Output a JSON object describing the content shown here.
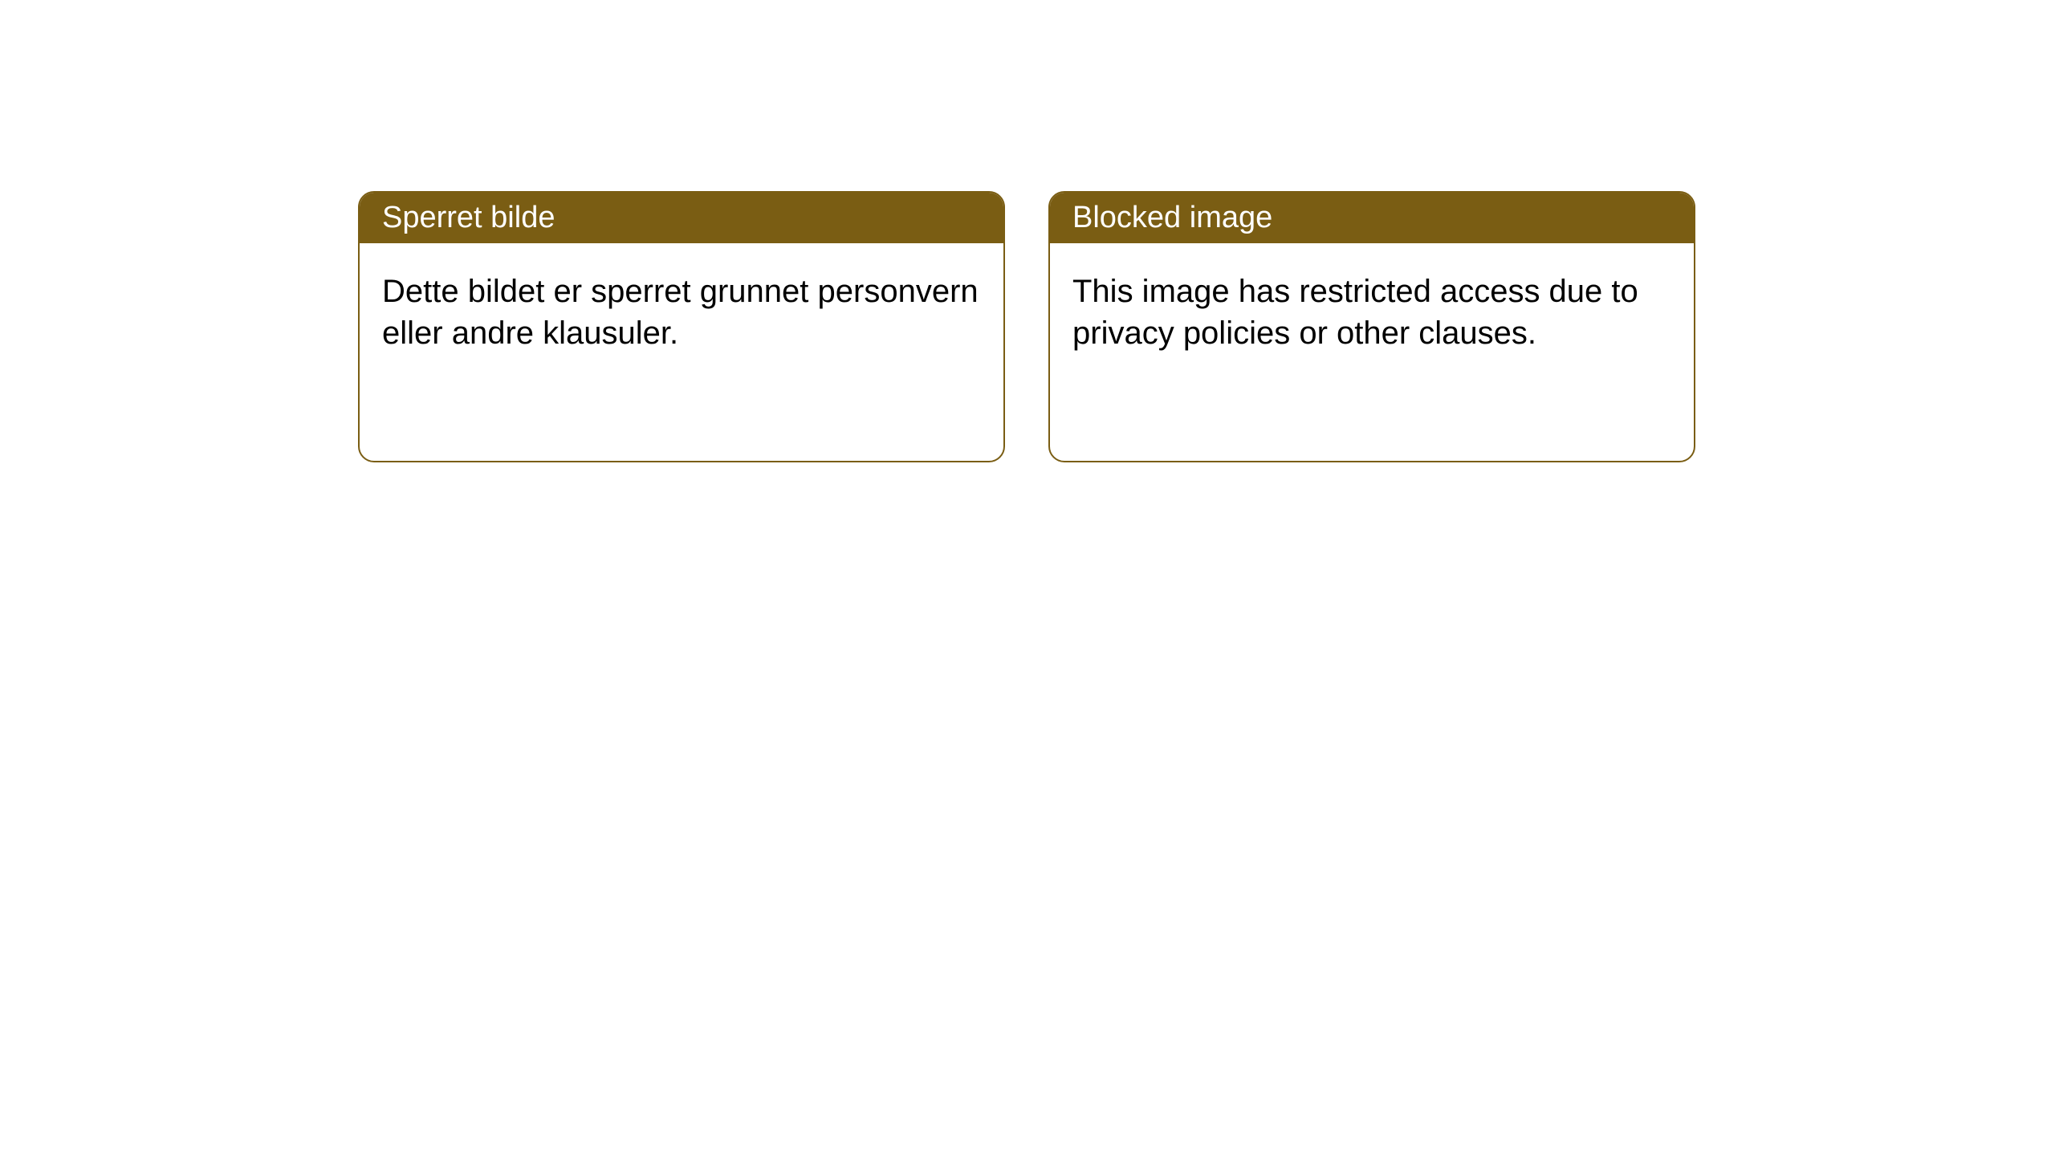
{
  "layout": {
    "background_color": "#ffffff",
    "card_border_color": "#7a5d13",
    "card_header_bg": "#7a5d13",
    "card_header_text_color": "#ffffff",
    "card_body_text_color": "#000000",
    "card_border_radius": 20,
    "header_fontsize": 38,
    "body_fontsize": 40
  },
  "cards": {
    "left": {
      "title": "Sperret bilde",
      "body": "Dette bildet er sperret grunnet personvern eller andre klausuler."
    },
    "right": {
      "title": "Blocked image",
      "body": "This image has restricted access due to privacy policies or other clauses."
    }
  }
}
